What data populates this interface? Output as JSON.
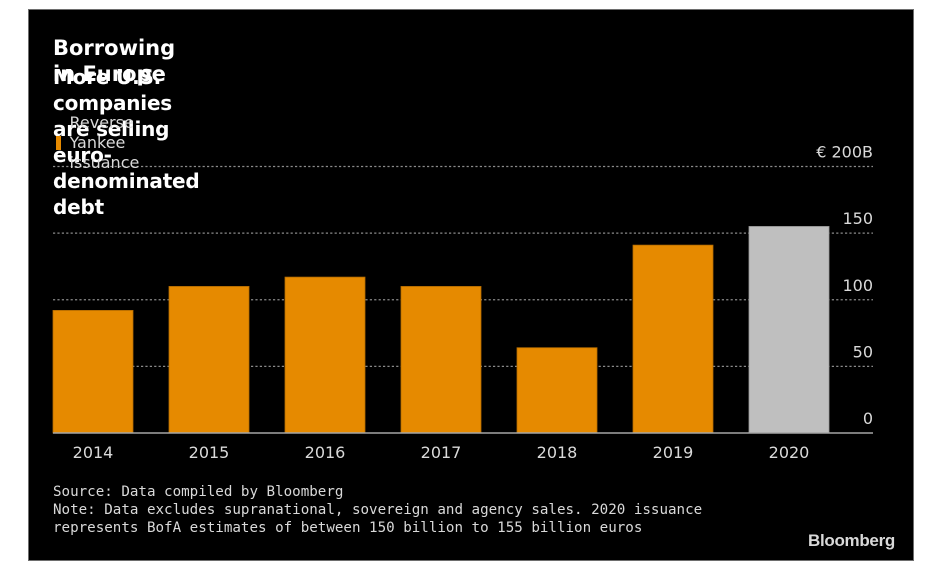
{
  "header": {
    "title": "Borrowing in Europe",
    "subtitle": "More U.S. companies are selling euro-denominated debt"
  },
  "legend": {
    "items": [
      {
        "label": "Reverse Yankee issuance",
        "color": "#E68A00"
      }
    ]
  },
  "colors": {
    "bar": "#E68A00",
    "bar_estimate": "#BFBFBF",
    "gridline": "#8a8a8a",
    "baseline": "#a6a6a6",
    "text": "#d9d9d9"
  },
  "chart_data": {
    "type": "bar",
    "title": "Borrowing in Europe",
    "subtitle": "More U.S. companies are selling euro-denominated debt",
    "categories": [
      "2014",
      "2015",
      "2016",
      "2017",
      "2018",
      "2019",
      "2020"
    ],
    "series": [
      {
        "name": "Reverse Yankee issuance",
        "values": [
          92,
          110,
          117,
          110,
          64,
          141,
          155
        ]
      }
    ],
    "highlight": {
      "2020": "estimate"
    },
    "xlabel": "",
    "ylabel": "",
    "ylim": [
      0,
      200
    ],
    "yticks": [
      0,
      50,
      100,
      150,
      200
    ],
    "ytick_labels": [
      "0",
      "50",
      "100",
      "150",
      "€ 200B"
    ],
    "yaxis_side": "right",
    "grid": true,
    "legend_position": "top-left"
  },
  "footer": {
    "source": "Source: Data compiled by Bloomberg",
    "note_line1": "Note: Data excludes supranational, sovereign and agency sales. 2020 issuance",
    "note_line2": "represents BofA estimates of between 150 billion to 155 billion euros",
    "brand": "Bloomberg"
  }
}
